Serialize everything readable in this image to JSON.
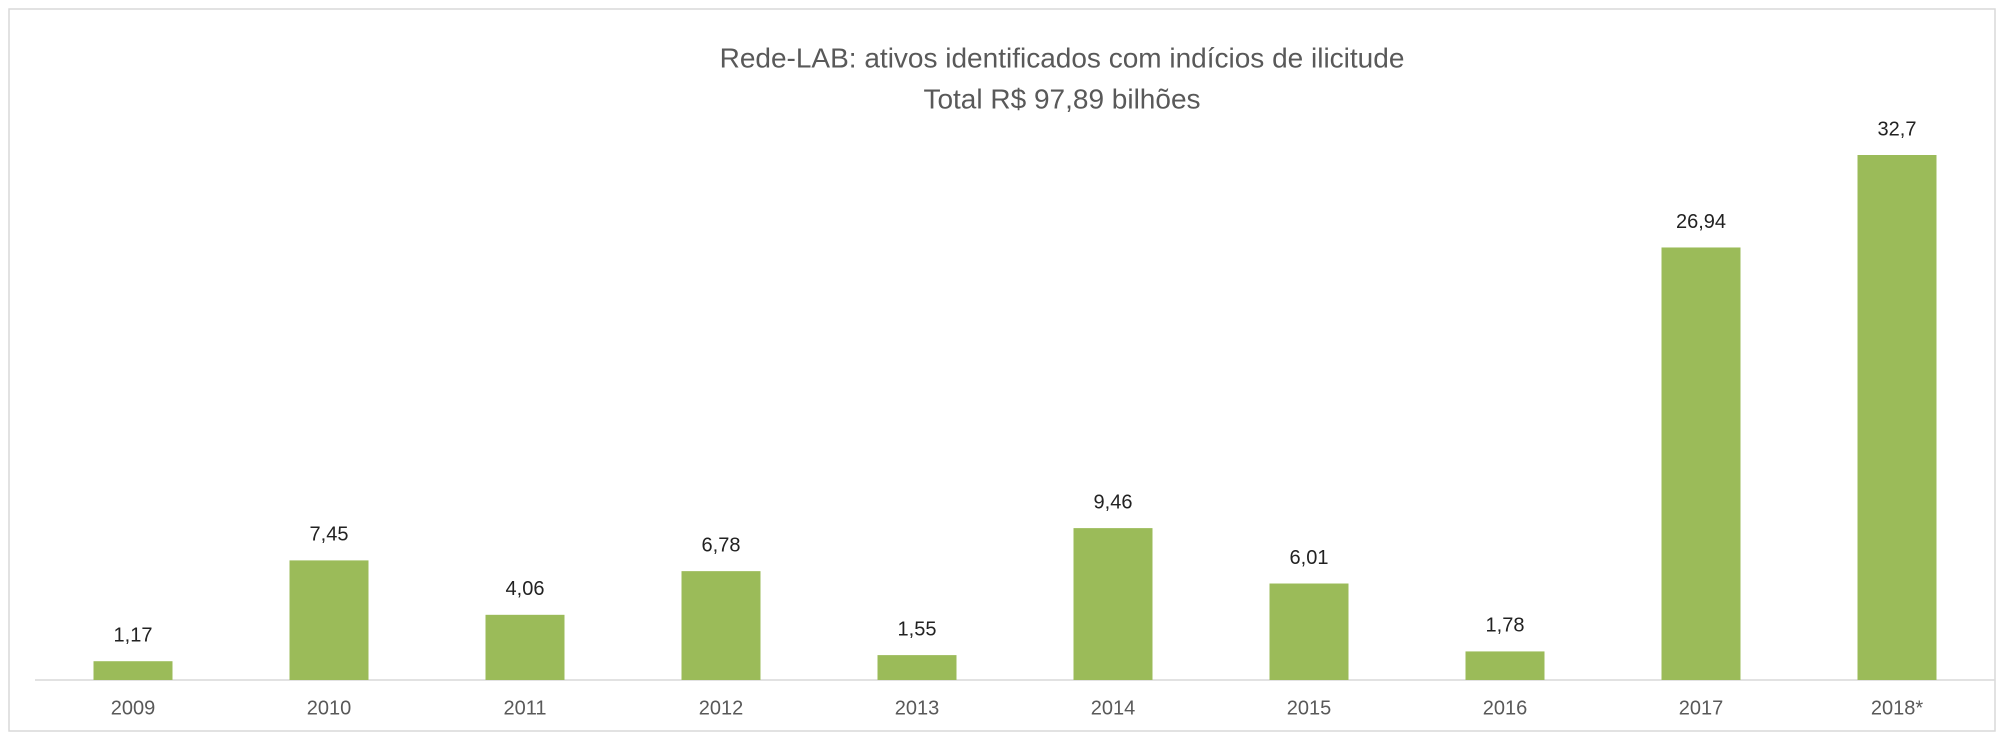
{
  "chart_data": {
    "type": "bar",
    "title": "Rede-LAB: ativos identificados com indícios de ilicitude",
    "subtitle": "Total R$ 97,89 bilhões",
    "categories": [
      "2009",
      "2010",
      "2011",
      "2012",
      "2013",
      "2014",
      "2015",
      "2016",
      "2017",
      "2018*"
    ],
    "values": [
      1.17,
      7.45,
      4.06,
      6.78,
      1.55,
      9.46,
      6.01,
      1.78,
      26.94,
      32.7
    ],
    "value_labels": [
      "1,17",
      "7,45",
      "4,06",
      "6,78",
      "1,55",
      "9,46",
      "6,01",
      "1,78",
      "26,94",
      "32,7"
    ],
    "color": "#9bbb59"
  }
}
